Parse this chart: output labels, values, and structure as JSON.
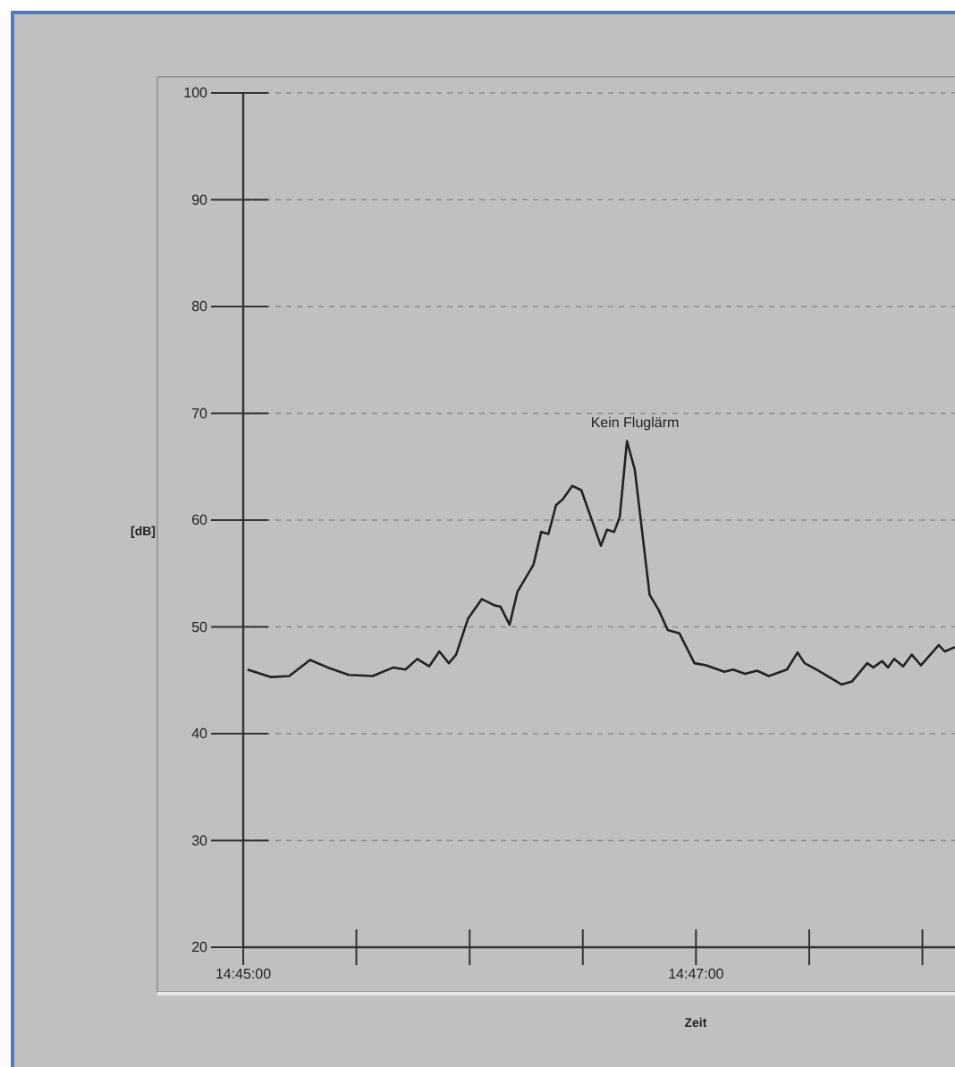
{
  "chart_data": {
    "type": "line",
    "xlabel": "Zeit",
    "ylabel": "[dB]",
    "annotations": [
      "Kein Fluglärm"
    ],
    "x": [
      14.75031,
      14.75206,
      14.75339,
      14.75492,
      14.75622,
      14.75778,
      14.75953,
      14.76106,
      14.76194,
      14.76281,
      14.76369,
      14.76444,
      14.76514,
      14.76567,
      14.76656,
      14.76756,
      14.76853,
      14.76894,
      14.76961,
      14.77019,
      14.77136,
      14.77194,
      14.77247,
      14.77303,
      14.77356,
      14.77422,
      14.77489,
      14.77575,
      14.77633,
      14.77678,
      14.77731,
      14.77772,
      14.77825,
      14.77883,
      14.7795,
      14.77992,
      14.78058,
      14.78125,
      14.78211,
      14.78322,
      14.78408,
      14.78542,
      14.78606,
      14.78694,
      14.78783,
      14.78869,
      14.79003,
      14.79081,
      14.79133,
      14.79222,
      14.79406,
      14.79483,
      14.79594,
      14.79639,
      14.79703,
      14.79747,
      14.79792,
      14.79858,
      14.79922,
      14.79989,
      14.8012,
      14.80164,
      14.80239
    ],
    "series": [
      {
        "color": "#222222",
        "values": [
          46.0,
          45.3,
          45.4,
          46.9,
          46.2,
          45.5,
          45.4,
          46.2,
          46.0,
          47.0,
          46.3,
          47.7,
          46.6,
          47.4,
          50.8,
          52.6,
          52.0,
          51.9,
          50.2,
          53.3,
          55.8,
          58.9,
          58.7,
          61.4,
          62.0,
          63.2,
          62.8,
          59.7,
          57.6,
          59.1,
          58.9,
          60.3,
          67.4,
          64.7,
          57.5,
          53.0,
          51.6,
          49.7,
          49.4,
          46.6,
          46.4,
          45.8,
          46.0,
          45.6,
          45.9,
          45.4,
          46.0,
          47.6,
          46.6,
          46.0,
          44.6,
          44.9,
          46.6,
          46.2,
          46.8,
          46.2,
          47.0,
          46.3,
          47.4,
          46.4,
          48.3,
          47.7,
          48.1
        ]
      }
    ],
    "xlim": [
      14.75,
      14.8024
    ],
    "xticks": [
      {
        "value": 14.75,
        "label": "14:45:00"
      },
      {
        "value": 14.75833,
        "label": null
      },
      {
        "value": 14.76667,
        "label": null
      },
      {
        "value": 14.775,
        "label": null
      },
      {
        "value": 14.78333,
        "label": "14:47:00"
      },
      {
        "value": 14.79167,
        "label": null
      },
      {
        "value": 14.8,
        "label": null
      }
    ],
    "ylim": [
      20,
      100
    ],
    "yticks": [
      20,
      30,
      40,
      50,
      60,
      70,
      80,
      90,
      100
    ],
    "grid": "y",
    "marker": "none",
    "line_style": "solid"
  }
}
